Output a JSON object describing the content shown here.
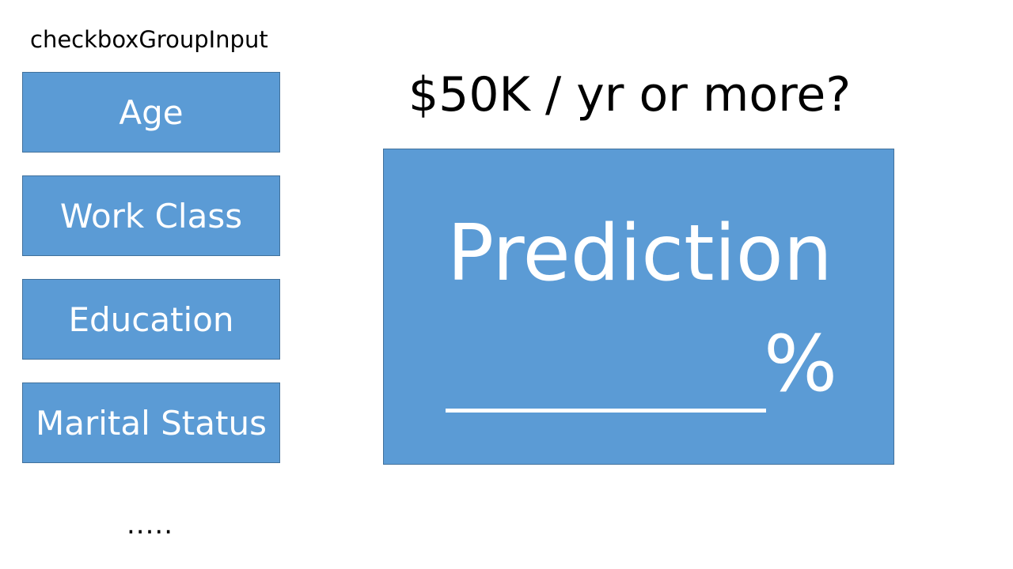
{
  "checkbox_group": {
    "label": "checkboxGroupInput",
    "options": [
      {
        "label": "Age"
      },
      {
        "label": "Work Class"
      },
      {
        "label": "Education"
      },
      {
        "label": "Marital Status"
      }
    ],
    "more_indicator": "....."
  },
  "main": {
    "question": "$50K / yr or more?",
    "prediction": {
      "title": "Prediction",
      "blank": "________",
      "unit": "%"
    }
  },
  "colors": {
    "box_fill": "#5b9bd5",
    "box_border": "#41719c",
    "box_text": "#ffffff",
    "page_text": "#000000"
  }
}
